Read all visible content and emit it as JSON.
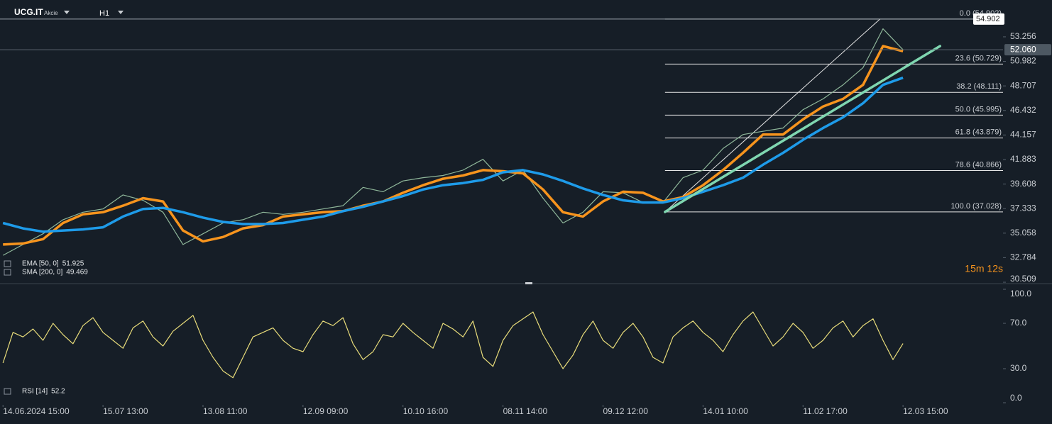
{
  "header": {
    "symbol": "UCG.IT",
    "type": "Akcie",
    "timeframe": "H1",
    "countdown": "15m 12s"
  },
  "chart_data": [
    {
      "type": "line",
      "x": [
        0,
        2,
        4,
        6,
        8,
        10,
        12,
        14,
        16,
        18,
        20,
        22,
        24,
        26,
        28,
        30,
        32,
        34,
        36,
        38,
        40,
        42,
        44,
        46,
        48,
        50,
        52,
        54,
        56,
        58,
        60,
        62,
        64,
        66,
        68,
        70,
        72,
        74,
        76,
        78,
        80,
        82,
        84,
        86,
        88,
        90
      ],
      "xlim": [
        -0.3,
        100
      ],
      "ylim": [
        30.38,
        56.67
      ],
      "yticks": [
        53.256,
        50.982,
        48.707,
        46.432,
        44.157,
        41.883,
        39.608,
        37.333,
        35.058,
        32.784,
        30.509
      ],
      "series": [
        {
          "name": "UCG.IT",
          "color": "#8fb79a",
          "values": [
            33.0,
            34.0,
            35.0,
            36.3,
            37.0,
            37.3,
            38.6,
            38.1,
            37.0,
            34.0,
            35.0,
            36.0,
            36.3,
            37.0,
            36.8,
            37.0,
            37.3,
            37.6,
            39.3,
            38.9,
            39.9,
            40.2,
            40.4,
            40.9,
            41.9,
            39.9,
            40.9,
            38.3,
            36.0,
            37.0,
            38.9,
            38.8,
            37.9,
            37.9,
            40.2,
            40.9,
            42.9,
            44.2,
            44.5,
            44.8,
            46.5,
            47.5,
            48.8,
            50.4,
            54.0,
            52.06
          ]
        },
        {
          "name": "EMA [50, 0]",
          "value_label": "51.925",
          "color": "#f7941d",
          "values": [
            34.0,
            34.1,
            34.5,
            36.0,
            36.8,
            37.0,
            37.6,
            38.3,
            38.0,
            35.3,
            34.3,
            34.7,
            35.5,
            35.8,
            36.6,
            36.8,
            37.0,
            37.1,
            37.6,
            38.0,
            38.8,
            39.5,
            40.1,
            40.4,
            40.9,
            40.8,
            40.6,
            39.1,
            37.0,
            36.6,
            38.0,
            38.9,
            38.8,
            38.0,
            38.4,
            39.5,
            40.9,
            42.5,
            44.2,
            44.2,
            45.6,
            46.8,
            47.5,
            48.8,
            52.4,
            51.925
          ]
        },
        {
          "name": "SMA [200, 0]",
          "value_label": "49.469",
          "color": "#1e9be9",
          "values": [
            36.0,
            35.5,
            35.2,
            35.3,
            35.4,
            35.6,
            36.6,
            37.3,
            37.4,
            37.0,
            36.5,
            36.1,
            35.9,
            35.9,
            36.0,
            36.3,
            36.6,
            37.1,
            37.5,
            38.0,
            38.5,
            39.1,
            39.5,
            39.7,
            40.0,
            40.7,
            40.9,
            40.5,
            39.9,
            39.2,
            38.6,
            38.1,
            37.9,
            37.9,
            38.3,
            38.9,
            39.5,
            40.2,
            41.4,
            42.5,
            43.7,
            44.8,
            45.8,
            47.1,
            48.8,
            49.469
          ]
        }
      ],
      "trendline": {
        "color": "#7fd6b0",
        "x": [
          66.2,
          93.7
        ],
        "values": [
          37.028,
          52.4
        ]
      },
      "fib_x": [
        66.2,
        87.7
      ],
      "fib_levels": [
        {
          "value": 54.902,
          "label": "0.0 (54.902)"
        },
        {
          "value": 50.729,
          "label": "23.6 (50.729)"
        },
        {
          "value": 48.111,
          "label": "38.2 (48.111)"
        },
        {
          "value": 45.995,
          "label": "50.0 (45.995)"
        },
        {
          "value": 43.879,
          "label": "61.8 (43.879)"
        },
        {
          "value": 40.866,
          "label": "78.6 (40.866)"
        },
        {
          "value": 37.028,
          "label": "100.0 (37.028)"
        }
      ],
      "price_labels": [
        {
          "value": 54.902,
          "label": "54.902"
        },
        {
          "value": 52.06,
          "label": "52.060"
        }
      ]
    },
    {
      "type": "line",
      "x": [
        0,
        1,
        2,
        3,
        4,
        5,
        6,
        7,
        8,
        9,
        10,
        11,
        12,
        13,
        14,
        15,
        16,
        17,
        18,
        19,
        20,
        21,
        22,
        23,
        24,
        25,
        26,
        27,
        28,
        29,
        30,
        31,
        32,
        33,
        34,
        35,
        36,
        37,
        38,
        39,
        40,
        41,
        42,
        43,
        44,
        45,
        46,
        47,
        48,
        49,
        50,
        51,
        52,
        53,
        54,
        55,
        56,
        57,
        58,
        59,
        60,
        61,
        62,
        63,
        64,
        65,
        66,
        67,
        68,
        69,
        70,
        71,
        72,
        73,
        74,
        75,
        76,
        77,
        78,
        79,
        80,
        81,
        82,
        83,
        84,
        85,
        86,
        87,
        88,
        89,
        90
      ],
      "xlim": [
        -0.3,
        100
      ],
      "ylim": [
        0,
        100
      ],
      "yticks": [
        {
          "value": 100,
          "label": "100.0"
        },
        {
          "value": 70,
          "label": "70.0"
        },
        {
          "value": 30,
          "label": "30.0"
        },
        {
          "value": 0,
          "label": "0.0"
        }
      ],
      "xticks": [
        {
          "value": 0,
          "label": "14.06.2024 15:00"
        },
        {
          "value": 10,
          "label": "15.07 13:00"
        },
        {
          "value": 20,
          "label": "13.08 11:00"
        },
        {
          "value": 30,
          "label": "12.09 09:00"
        },
        {
          "value": 40,
          "label": "10.10 16:00"
        },
        {
          "value": 50,
          "label": "08.11 14:00"
        },
        {
          "value": 60,
          "label": "09.12 12:00"
        },
        {
          "value": 70,
          "label": "14.01 10:00"
        },
        {
          "value": 80,
          "label": "11.02 17:00"
        },
        {
          "value": 90,
          "label": "12.03 15:00"
        }
      ],
      "series": [
        {
          "name": "RSI [14]",
          "value_label": "52.2",
          "color": "#e8dc7a",
          "values": [
            35,
            62,
            58,
            65,
            55,
            70,
            60,
            52,
            68,
            75,
            62,
            55,
            48,
            66,
            72,
            58,
            50,
            63,
            70,
            77,
            55,
            40,
            28,
            22,
            40,
            58,
            62,
            66,
            55,
            48,
            45,
            60,
            72,
            68,
            75,
            52,
            38,
            45,
            60,
            58,
            70,
            62,
            55,
            48,
            70,
            65,
            58,
            72,
            40,
            32,
            55,
            68,
            74,
            80,
            60,
            45,
            30,
            42,
            60,
            72,
            55,
            48,
            62,
            70,
            58,
            40,
            35,
            58,
            66,
            72,
            62,
            55,
            45,
            60,
            72,
            80,
            65,
            50,
            58,
            70,
            62,
            48,
            55,
            66,
            72,
            58,
            68,
            74,
            55,
            38,
            52.2
          ]
        }
      ]
    }
  ]
}
